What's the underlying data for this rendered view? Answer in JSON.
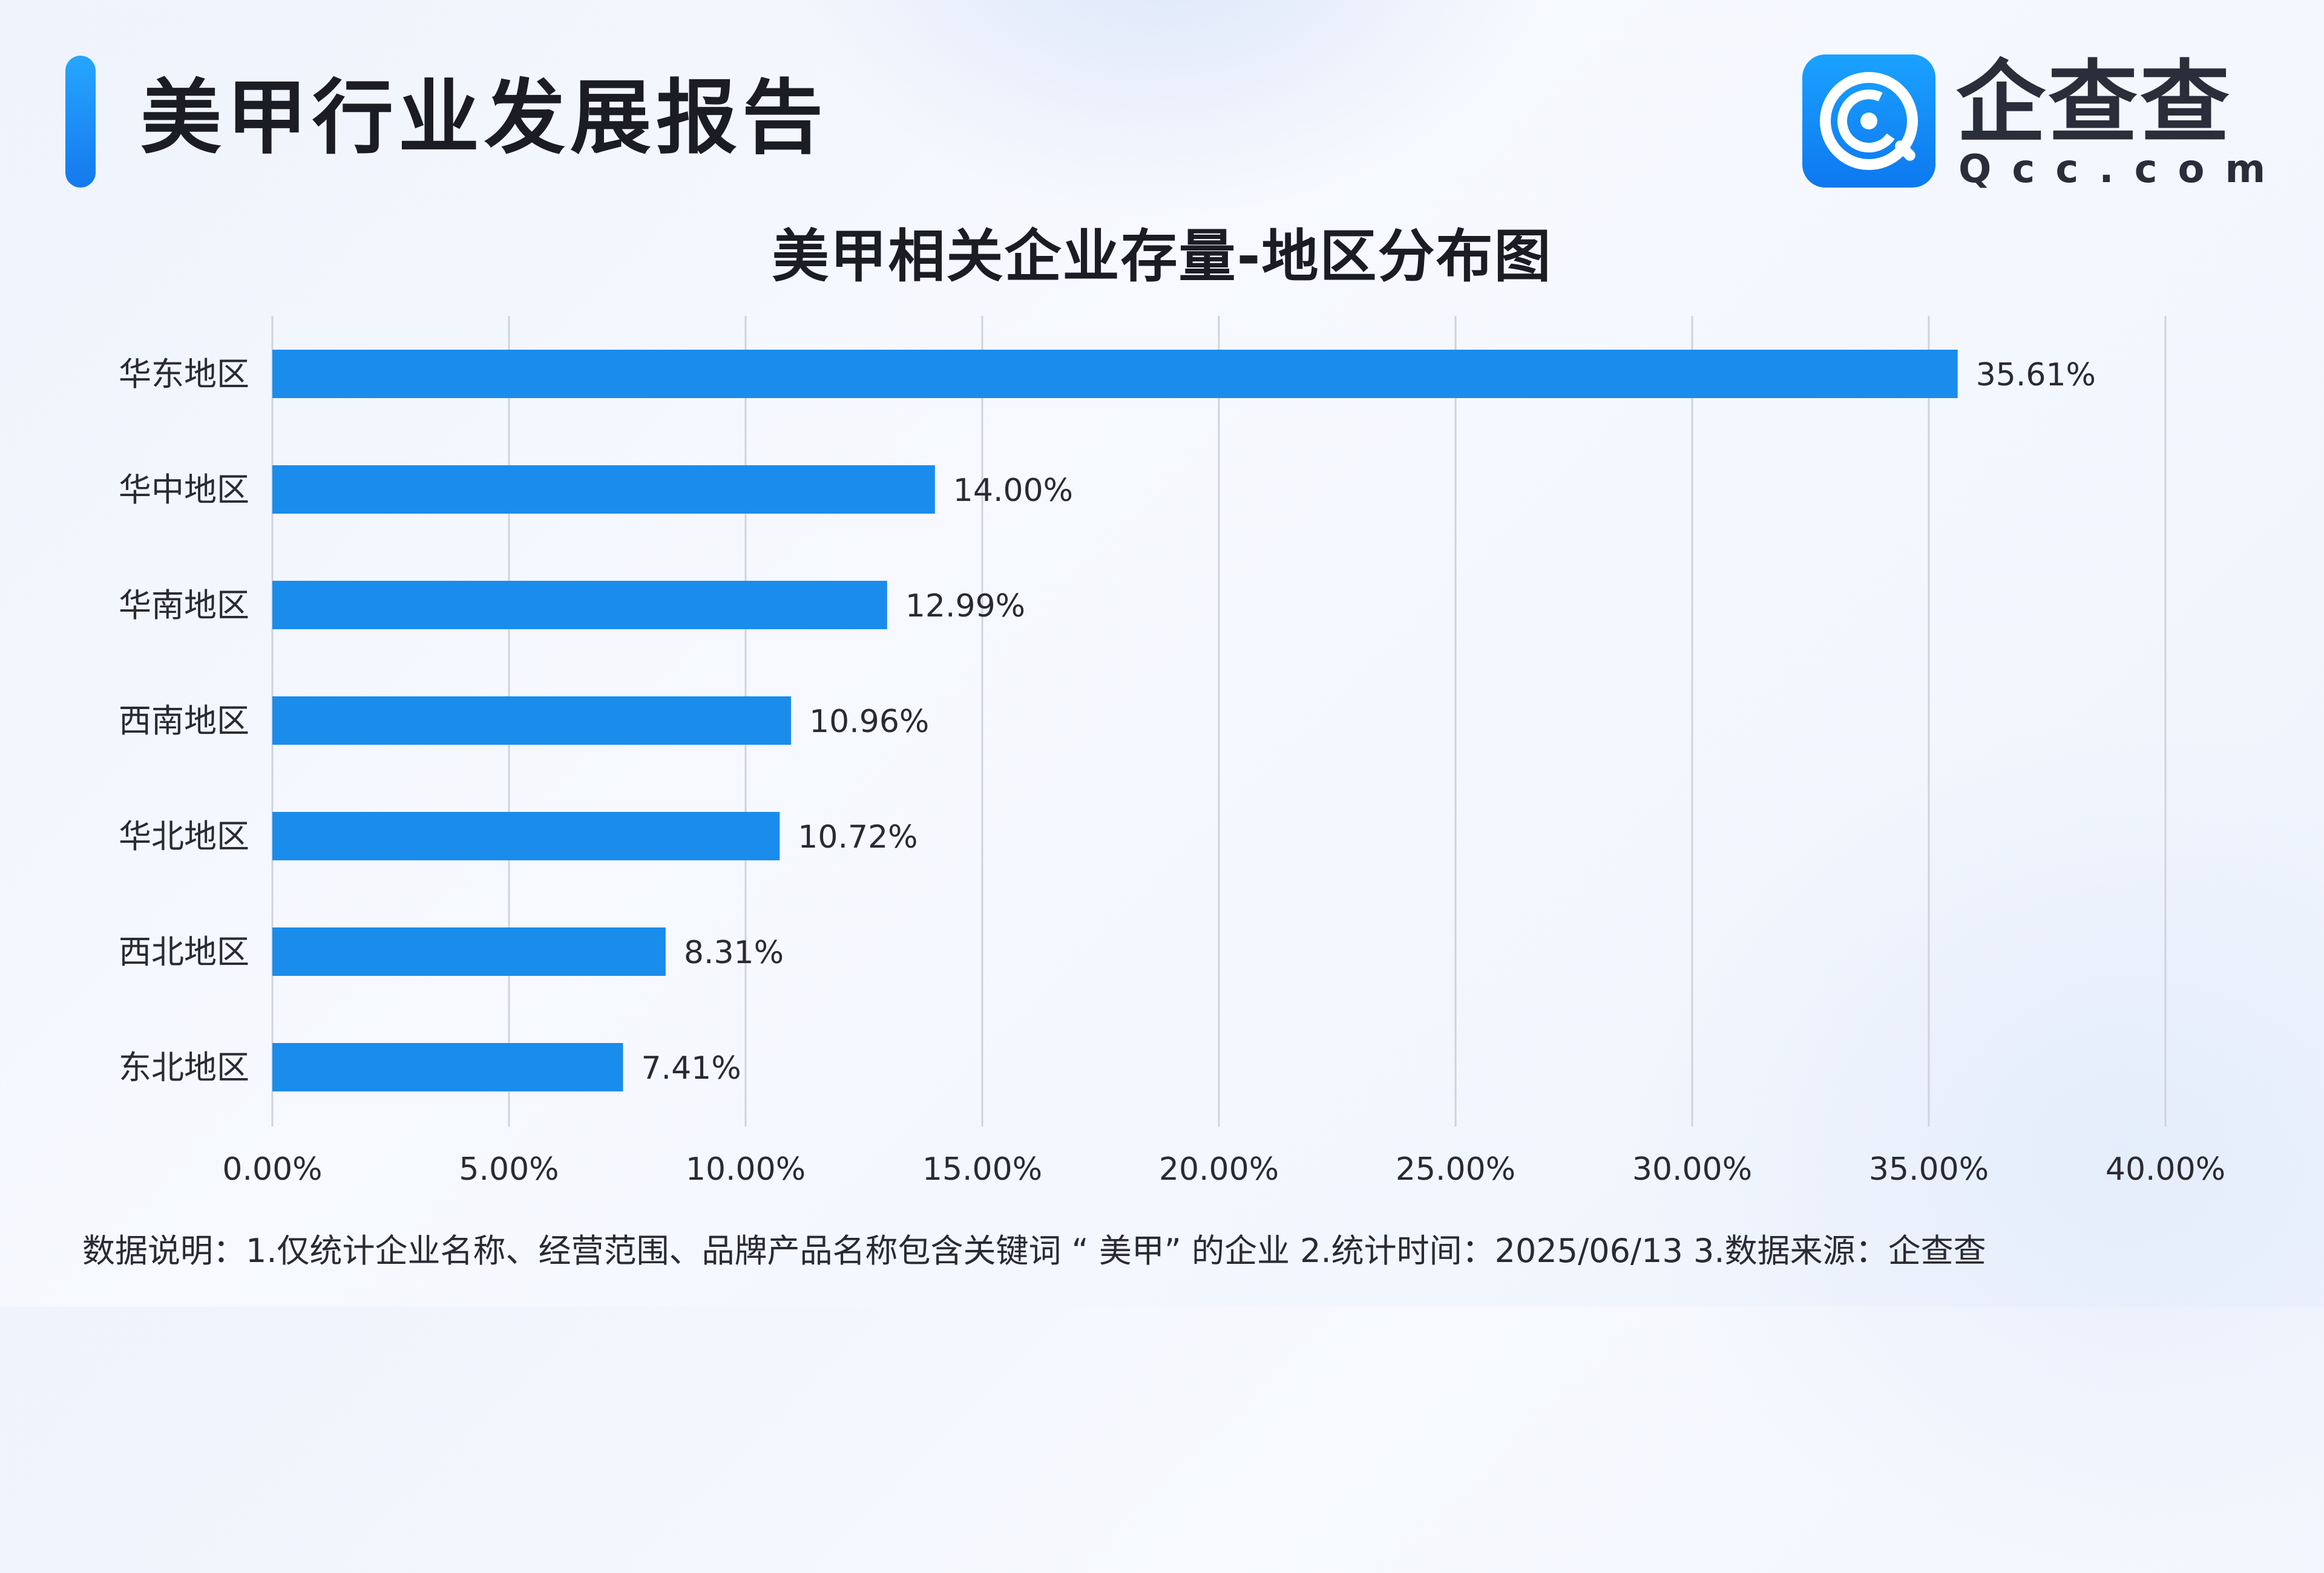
{
  "header": {
    "title": "美甲行业发展报告"
  },
  "logo": {
    "icon": "qcc-logo-icon",
    "name": "企查查",
    "domain": "Qcc.com",
    "color": "#1a8cff"
  },
  "chart_data": {
    "type": "bar",
    "orientation": "horizontal",
    "title": "美甲相关企业存量-地区分布图",
    "xlabel": "",
    "ylabel": "",
    "categories": [
      "华东地区",
      "华中地区",
      "华南地区",
      "西南地区",
      "华北地区",
      "西北地区",
      "东北地区"
    ],
    "values": [
      35.61,
      14.0,
      12.99,
      10.96,
      10.72,
      8.31,
      7.41
    ],
    "value_labels": [
      "35.61%",
      "14.00%",
      "12.99%",
      "10.96%",
      "10.72%",
      "8.31%",
      "7.41%"
    ],
    "xlim": [
      0,
      40
    ],
    "xticks": [
      0,
      5,
      10,
      15,
      20,
      25,
      30,
      35,
      40
    ],
    "xtick_labels": [
      "0.00%",
      "5.00%",
      "10.00%",
      "15.00%",
      "20.00%",
      "25.00%",
      "30.00%",
      "35.00%",
      "40.00%"
    ],
    "grid": true,
    "legend": "none",
    "bar_color": "#1a8cec"
  },
  "footnote": "数据说明：1.仅统计企业名称、经营范围、品牌产品名称包含关键词 “ 美甲” 的企业   2.统计时间：2025/06/13    3.数据来源：企查查"
}
